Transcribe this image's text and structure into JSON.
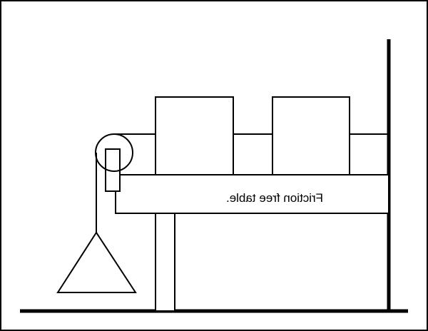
{
  "diagram": {
    "table_label": "Friction free table.",
    "label_mirrored": true,
    "colors": {
      "stroke": "#000000",
      "background": "#ffffff"
    },
    "parts": {
      "blocks": [
        "block-left",
        "block-right"
      ],
      "pulley": "pulley",
      "hanging_mass": "triangle-weight",
      "support": "table-leg"
    }
  }
}
